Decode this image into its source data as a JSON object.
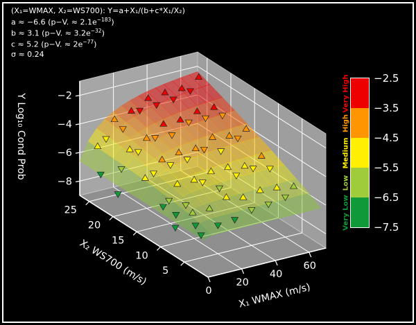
{
  "figure": {
    "background": "#000000",
    "frame_color": "#ffffff"
  },
  "annotation": {
    "title_line": "(X₁=WMAX, X₂=WS700): Y=a+X₁/(b+c*X₁/X₂)",
    "param_lines": [
      {
        "pre": "a ≈ −6.6 (p−V. ≈ 2.1e",
        "exp": "−183",
        "post": ")"
      },
      {
        "pre": "b ≈ 3.1 (p−V. ≈ 3.2e",
        "exp": "−32",
        "post": ")"
      },
      {
        "pre": "c ≈ 5.2 (p−V. ≈ 2e",
        "exp": "−77",
        "post": ")"
      },
      {
        "pre": "σ ≈ 0.24",
        "exp": "",
        "post": ""
      }
    ]
  },
  "axes": {
    "x1": {
      "label": "X₁ WMAX (m/s)",
      "ticks": [
        0,
        20,
        40,
        60
      ],
      "range": [
        0,
        70
      ]
    },
    "x2": {
      "label": "X₂ WS700 (m/s)",
      "ticks": [
        5,
        10,
        15,
        20,
        25
      ],
      "range": [
        0,
        27
      ]
    },
    "z": {
      "label": "Y Log₁₀ Cond Prob",
      "ticks": [
        -8,
        -6,
        -4,
        -2
      ],
      "range": [
        -9,
        -1
      ]
    }
  },
  "colorbar": {
    "ticks": [
      -2.5,
      -3.5,
      -4.5,
      -5.5,
      -6.5,
      -7.5
    ],
    "categories": [
      {
        "label": "Very High",
        "color": "#ee0000"
      },
      {
        "label": "High",
        "color": "#ff9500"
      },
      {
        "label": "Medium",
        "color": "#ffef00"
      },
      {
        "label": "Low",
        "color": "#9fcc3b"
      },
      {
        "label": "Very Low",
        "color": "#109939"
      }
    ]
  },
  "style": {
    "pane_left": "#a6a6a6",
    "pane_right": "#9e9e9e",
    "floor": "#8f8f8f",
    "grid": "#ffffff",
    "text": "#ffffff",
    "marker_edge": "#222222",
    "surface_opacity": 0.5
  },
  "chart_data": {
    "type": "scatter",
    "projection": "3d",
    "xlabel": "X₁ WMAX (m/s)",
    "ylabel": "X₂ WS700 (m/s)",
    "zlabel": "Y Log₁₀ Cond Prob",
    "x1_range": [
      0,
      70
    ],
    "x2_range": [
      0,
      27
    ],
    "z_range": [
      -9,
      -1
    ],
    "surface_model": {
      "formula": "Y = a + X1/(b + c*X1/X2)",
      "a": -6.6,
      "b": 3.1,
      "c": 5.2,
      "sigma": 0.24,
      "p_values": {
        "a": "2.1e−183",
        "b": "3.2e−32",
        "c": "2e−77"
      }
    },
    "marker_legend": {
      "u": "triangle-up",
      "d": "triangle-down"
    },
    "points": [
      [
        5,
        5,
        -5.7,
        "u"
      ],
      [
        10,
        5,
        -7.4,
        "d"
      ],
      [
        15,
        5,
        -5.7,
        "u"
      ],
      [
        20,
        5,
        -7.0,
        "d"
      ],
      [
        25,
        5,
        -5.2,
        "u"
      ],
      [
        30,
        5,
        -6.9,
        "d"
      ],
      [
        35,
        5,
        -5.5,
        "u"
      ],
      [
        40,
        5,
        -6.5,
        "d"
      ],
      [
        45,
        5,
        -5.3,
        "u"
      ],
      [
        50,
        5,
        -6.4,
        "d"
      ],
      [
        55,
        5,
        -5.4,
        "u"
      ],
      [
        60,
        5,
        -6.2,
        "d"
      ],
      [
        65,
        5,
        -5.6,
        "u"
      ],
      [
        5,
        10,
        -5.9,
        "d"
      ],
      [
        10,
        10,
        -4.9,
        "u"
      ],
      [
        15,
        10,
        -6.5,
        "d"
      ],
      [
        20,
        10,
        -4.9,
        "u"
      ],
      [
        25,
        10,
        -5.2,
        "d"
      ],
      [
        30,
        10,
        -4.6,
        "u"
      ],
      [
        35,
        10,
        -5.9,
        "d"
      ],
      [
        40,
        10,
        -4.6,
        "u"
      ],
      [
        45,
        10,
        -5.3,
        "d"
      ],
      [
        50,
        10,
        -4.8,
        "u"
      ],
      [
        55,
        10,
        -5.1,
        "d"
      ],
      [
        60,
        10,
        -4.4,
        "u"
      ],
      [
        65,
        10,
        -5.4,
        "d"
      ],
      [
        5,
        15,
        -5.4,
        "u"
      ],
      [
        10,
        15,
        -5.2,
        "d"
      ],
      [
        15,
        15,
        -4.4,
        "u"
      ],
      [
        20,
        15,
        -4.9,
        "d"
      ],
      [
        25,
        15,
        -4.2,
        "u"
      ],
      [
        30,
        15,
        -4.8,
        "d"
      ],
      [
        35,
        15,
        -4.2,
        "u"
      ],
      [
        40,
        15,
        -4.4,
        "d"
      ],
      [
        45,
        15,
        -3.7,
        "u"
      ],
      [
        50,
        15,
        -4.8,
        "d"
      ],
      [
        55,
        15,
        -3.9,
        "u"
      ],
      [
        60,
        15,
        -4.2,
        "d"
      ],
      [
        65,
        15,
        -3.7,
        "u"
      ],
      [
        5,
        20,
        -5.8,
        "d"
      ],
      [
        10,
        20,
        -4.6,
        "u"
      ],
      [
        15,
        20,
        -4.9,
        "d"
      ],
      [
        20,
        20,
        -4.1,
        "u"
      ],
      [
        25,
        20,
        -4.2,
        "d"
      ],
      [
        30,
        20,
        -3.4,
        "u"
      ],
      [
        35,
        20,
        -4.3,
        "d"
      ],
      [
        40,
        20,
        -3.4,
        "u"
      ],
      [
        45,
        20,
        -3.7,
        "d"
      ],
      [
        50,
        20,
        -3.1,
        "u"
      ],
      [
        55,
        20,
        -3.7,
        "d"
      ],
      [
        60,
        20,
        -3.1,
        "u"
      ],
      [
        65,
        20,
        -3.8,
        "d"
      ],
      [
        5,
        25,
        -5.3,
        "u"
      ],
      [
        10,
        25,
        -4.9,
        "d"
      ],
      [
        15,
        25,
        -3.7,
        "u"
      ],
      [
        20,
        25,
        -4.5,
        "d"
      ],
      [
        25,
        25,
        -3.4,
        "u"
      ],
      [
        30,
        25,
        -3.5,
        "d"
      ],
      [
        35,
        25,
        -2.8,
        "u"
      ],
      [
        40,
        25,
        -3.4,
        "d"
      ],
      [
        45,
        25,
        -2.7,
        "u"
      ],
      [
        50,
        25,
        -3.3,
        "d"
      ],
      [
        55,
        25,
        -2.7,
        "u"
      ],
      [
        60,
        25,
        -3.0,
        "d"
      ],
      [
        65,
        25,
        -2.2,
        "u"
      ],
      [
        6,
        9,
        -7.6,
        "d"
      ],
      [
        12,
        11,
        -7.3,
        "d"
      ],
      [
        18,
        9,
        -7.8,
        "d"
      ],
      [
        10,
        13,
        -7.1,
        "d"
      ],
      [
        3,
        20,
        -7.5,
        "d"
      ],
      [
        4,
        24,
        -7.0,
        "d"
      ]
    ]
  }
}
